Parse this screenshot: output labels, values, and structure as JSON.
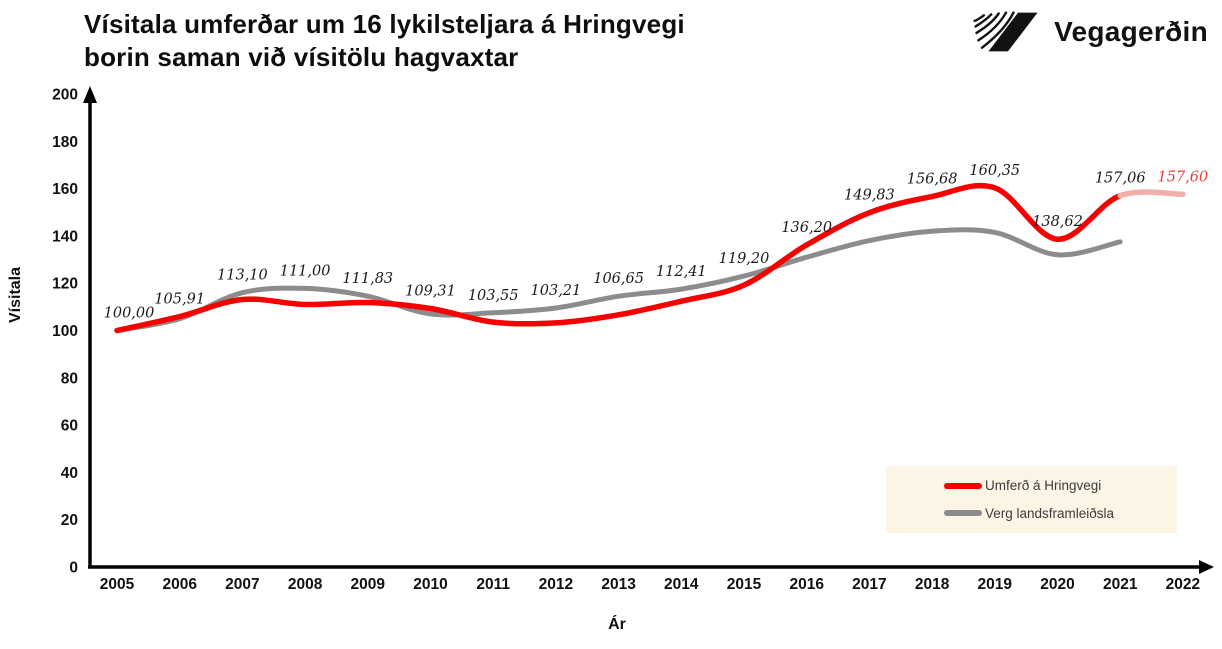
{
  "header": {
    "title_line1": "Vísitala umferðar um 16 lykilsteljara á Hringvegi",
    "title_line2": "borin saman við vísitölu hagvaxtar"
  },
  "logo": {
    "text": "Vegagerðin"
  },
  "chart_data": {
    "type": "line",
    "title": "Vísitala umferðar um 16 lykilsteljara á Hringvegi borin saman við vísitölu hagvaxtar",
    "xlabel": "Ár",
    "ylabel": "Vísitala",
    "x": [
      2005,
      2006,
      2007,
      2008,
      2009,
      2010,
      2011,
      2012,
      2013,
      2014,
      2015,
      2016,
      2017,
      2018,
      2019,
      2020,
      2021,
      2022
    ],
    "ylim": [
      0,
      200
    ],
    "yticks": [
      0,
      20,
      40,
      60,
      80,
      100,
      120,
      140,
      160,
      180,
      200
    ],
    "grid": false,
    "legend_position": "lower right",
    "legend_bg": "#fcf4e4",
    "axis_color": "#000000",
    "series": [
      {
        "name": "Umferð á Hringvegi",
        "color": "#f60000",
        "values": [
          100.0,
          105.91,
          113.1,
          111.0,
          111.83,
          109.31,
          103.55,
          103.21,
          106.65,
          112.41,
          119.2,
          136.2,
          149.83,
          156.68,
          160.35,
          138.62,
          157.06,
          157.6
        ],
        "point_labels": [
          "100,00",
          "105,91",
          "113,10",
          "111,00",
          "111,83",
          "109,31",
          "103,55",
          "103,21",
          "106,65",
          "112,41",
          "119,20",
          "136,20",
          "149,83",
          "156,68",
          "160,35",
          "138,62",
          "157,06",
          "157,60"
        ],
        "label_color": "#1a1a1a",
        "last_label_color": "#e2403e",
        "forecast_last_segment": true,
        "forecast_color": "#f2aeab"
      },
      {
        "name": "Verg landsframleiðsla",
        "color": "#8c8c8c",
        "values": [
          100.0,
          105.0,
          116.0,
          117.8,
          114.5,
          107.0,
          107.5,
          109.5,
          114.5,
          117.5,
          123.0,
          131.0,
          138.0,
          142.0,
          141.5,
          132.0,
          137.5,
          null
        ]
      }
    ]
  }
}
